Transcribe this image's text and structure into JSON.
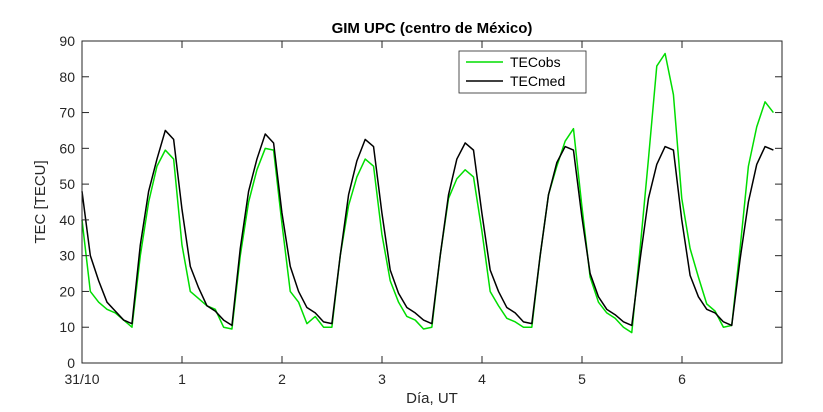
{
  "chart_data": {
    "type": "line",
    "title": "GIM UPC (centro de México)",
    "xlabel": "Día, UT",
    "ylabel": "TEC [TECU]",
    "xlim": [
      0,
      7
    ],
    "ylim": [
      0,
      90
    ],
    "grid": false,
    "legend_position": "top-right",
    "x_ticks": [
      {
        "value": 0,
        "label": "31/10"
      },
      {
        "value": 1,
        "label": "1"
      },
      {
        "value": 2,
        "label": "2"
      },
      {
        "value": 3,
        "label": "3"
      },
      {
        "value": 4,
        "label": "4"
      },
      {
        "value": 5,
        "label": "5"
      },
      {
        "value": 6,
        "label": "6"
      }
    ],
    "y_ticks": [
      0,
      10,
      20,
      30,
      40,
      50,
      60,
      70,
      80,
      90
    ],
    "x_step": 0.0833,
    "series": [
      {
        "name": "TECobs",
        "color": "#00dd00",
        "values": [
          40,
          20,
          17,
          15,
          14,
          12,
          10,
          30,
          45,
          55,
          59.5,
          57,
          33,
          20,
          18,
          16,
          15,
          10,
          9.5,
          30,
          45,
          54,
          60,
          59.5,
          39,
          20,
          17,
          11,
          13,
          10,
          10,
          30,
          44,
          52,
          57,
          55,
          36,
          23,
          17,
          13,
          12,
          9.5,
          10,
          30,
          46,
          51.5,
          54,
          52,
          37,
          20,
          16,
          12.5,
          11.5,
          10,
          10,
          30,
          47,
          55,
          62,
          65.5,
          44,
          24,
          17,
          14,
          12.5,
          10,
          8.5,
          32,
          57,
          83,
          86.5,
          75,
          46,
          32,
          24,
          16.5,
          14.5,
          10,
          10.5,
          32,
          55,
          66,
          73,
          70
        ]
      },
      {
        "name": "TECmed",
        "color": "#000000",
        "values": [
          48,
          30,
          23,
          17,
          14.5,
          12,
          11,
          33,
          48,
          57,
          65,
          62.5,
          43,
          27,
          21,
          16,
          14.5,
          12,
          10.5,
          32,
          48,
          57,
          64,
          61.5,
          42,
          27,
          20,
          15.5,
          14,
          11.5,
          11,
          30,
          47,
          56.5,
          62.5,
          60.5,
          42,
          26,
          19.5,
          15.5,
          14,
          12,
          11,
          30,
          47,
          57,
          61.5,
          59.5,
          42,
          26,
          20,
          15.5,
          14,
          11.5,
          11,
          30,
          47,
          56,
          60.5,
          59.5,
          41,
          25,
          18.5,
          15,
          13.5,
          11.5,
          10.5,
          29,
          46,
          55.5,
          60.5,
          59.5,
          40,
          24.5,
          18.5,
          15,
          14,
          11.5,
          10.5,
          29,
          45,
          55.5,
          60.5,
          59.5
        ]
      }
    ]
  }
}
